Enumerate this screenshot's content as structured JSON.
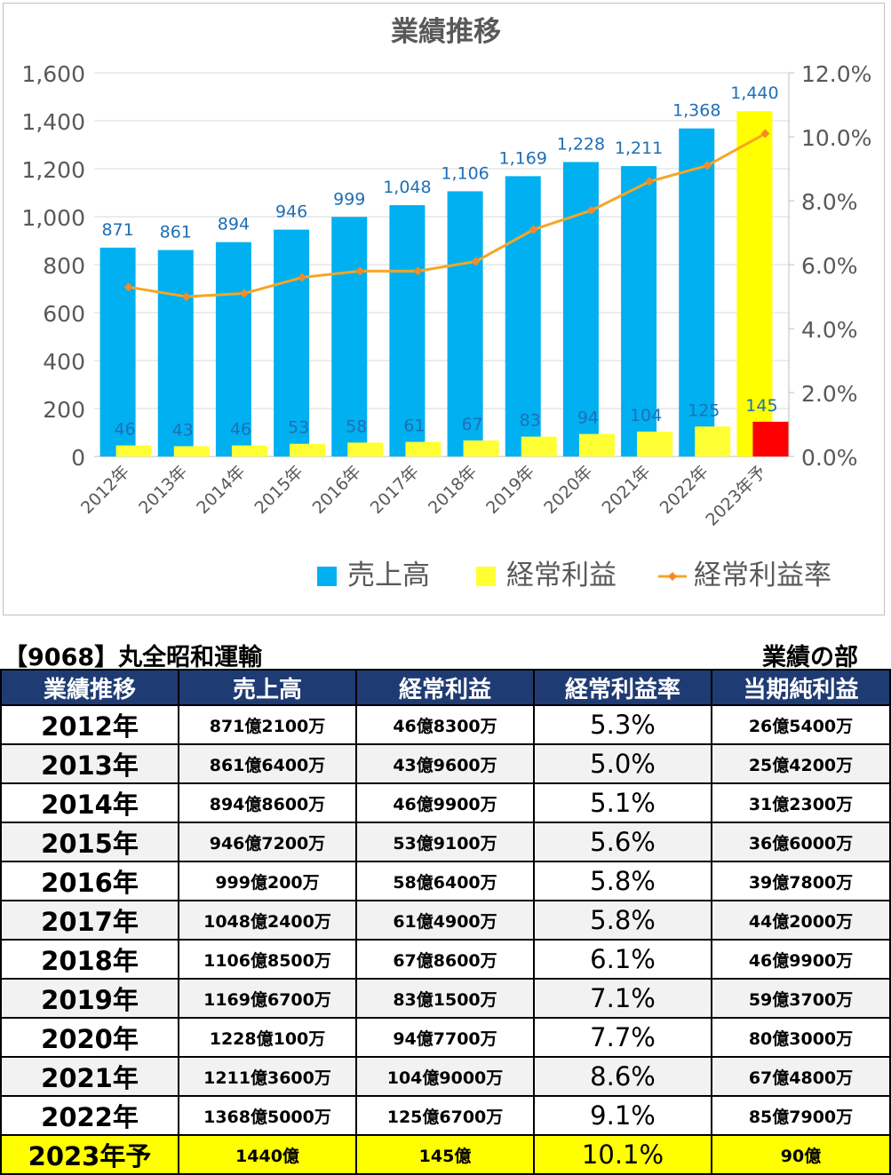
{
  "chart_data": {
    "type": "bar",
    "title": "業績推移",
    "categories": [
      "2012年",
      "2013年",
      "2014年",
      "2015年",
      "2016年",
      "2017年",
      "2018年",
      "2019年",
      "2020年",
      "2021年",
      "2022年",
      "2023年予"
    ],
    "series": [
      {
        "name": "売上高",
        "type": "bar",
        "axis": "left",
        "color": "#00b0f0",
        "forecast_color": "#ffff00",
        "values": [
          871,
          861,
          894,
          946,
          999,
          1048,
          1106,
          1169,
          1228,
          1211,
          1368,
          1440
        ],
        "labels": [
          "871",
          "861",
          "894",
          "946",
          "999",
          "1,048",
          "1,106",
          "1,169",
          "1,228",
          "1,211",
          "1,368",
          "1,440"
        ]
      },
      {
        "name": "経常利益",
        "type": "bar",
        "axis": "left",
        "color": "#ffff33",
        "forecast_color": "#ff0000",
        "values": [
          46,
          43,
          46,
          53,
          58,
          61,
          67,
          83,
          94,
          104,
          125,
          145
        ],
        "labels": [
          "46",
          "43",
          "46",
          "53",
          "58",
          "61",
          "67",
          "83",
          "94",
          "104",
          "125",
          "145"
        ]
      },
      {
        "name": "経常利益率",
        "type": "line",
        "axis": "right",
        "color": "#f5a623",
        "marker_color": "#f28c28",
        "values": [
          5.3,
          5.0,
          5.1,
          5.6,
          5.8,
          5.8,
          6.1,
          7.1,
          7.7,
          8.6,
          9.1,
          10.1
        ]
      }
    ],
    "y_left": {
      "ylim": [
        0,
        1600
      ],
      "ticks": [
        0,
        200,
        400,
        600,
        800,
        1000,
        1200,
        1400,
        1600
      ],
      "tick_labels": [
        "0",
        "200",
        "400",
        "600",
        "800",
        "1,000",
        "1,200",
        "1,400",
        "1,600"
      ]
    },
    "y_right": {
      "ylim": [
        0,
        12
      ],
      "ticks": [
        0,
        2,
        4,
        6,
        8,
        10,
        12
      ],
      "tick_labels": [
        "0.0%",
        "2.0%",
        "4.0%",
        "6.0%",
        "8.0%",
        "10.0%",
        "12.0%"
      ]
    },
    "grid": true,
    "legend_position": "bottom"
  },
  "colors": {
    "sales_bar": "#00b0f0",
    "profit_bar": "#ffff33",
    "forecast_sales_bar": "#ffff00",
    "forecast_profit_bar": "#ff0000",
    "rate_line": "#f5a623",
    "data_label": "#1f6fb5",
    "table_header_bg": "#1f3b73",
    "forecast_row_bg": "#ffff00"
  },
  "company": {
    "name": "【9068】丸全昭和運輸",
    "section": "業績の部"
  },
  "table": {
    "headers": [
      "業績推移",
      "売上高",
      "経常利益",
      "経常利益率",
      "当期純利益"
    ],
    "rows": [
      {
        "year": "2012年",
        "sales": "871億2100万",
        "profit": "46億8300万",
        "rate": "5.3%",
        "net": "26億5400万"
      },
      {
        "year": "2013年",
        "sales": "861億6400万",
        "profit": "43億9600万",
        "rate": "5.0%",
        "net": "25億4200万"
      },
      {
        "year": "2014年",
        "sales": "894億8600万",
        "profit": "46億9900万",
        "rate": "5.1%",
        "net": "31億2300万"
      },
      {
        "year": "2015年",
        "sales": "946億7200万",
        "profit": "53億9100万",
        "rate": "5.6%",
        "net": "36億6000万"
      },
      {
        "year": "2016年",
        "sales": "999億200万",
        "profit": "58億6400万",
        "rate": "5.8%",
        "net": "39億7800万"
      },
      {
        "year": "2017年",
        "sales": "1048億2400万",
        "profit": "61億4900万",
        "rate": "5.8%",
        "net": "44億2000万"
      },
      {
        "year": "2018年",
        "sales": "1106億8500万",
        "profit": "67億8600万",
        "rate": "6.1%",
        "net": "46億9900万"
      },
      {
        "year": "2019年",
        "sales": "1169億6700万",
        "profit": "83億1500万",
        "rate": "7.1%",
        "net": "59億3700万"
      },
      {
        "year": "2020年",
        "sales": "1228億100万",
        "profit": "94億7700万",
        "rate": "7.7%",
        "net": "80億3000万"
      },
      {
        "year": "2021年",
        "sales": "1211億3600万",
        "profit": "104億9000万",
        "rate": "8.6%",
        "net": "67億4800万"
      },
      {
        "year": "2022年",
        "sales": "1368億5000万",
        "profit": "125億6700万",
        "rate": "9.1%",
        "net": "85億7900万"
      },
      {
        "year": "2023年予",
        "sales": "1440億",
        "profit": "145億",
        "rate": "10.1%",
        "net": "90億",
        "forecast": true
      }
    ]
  }
}
